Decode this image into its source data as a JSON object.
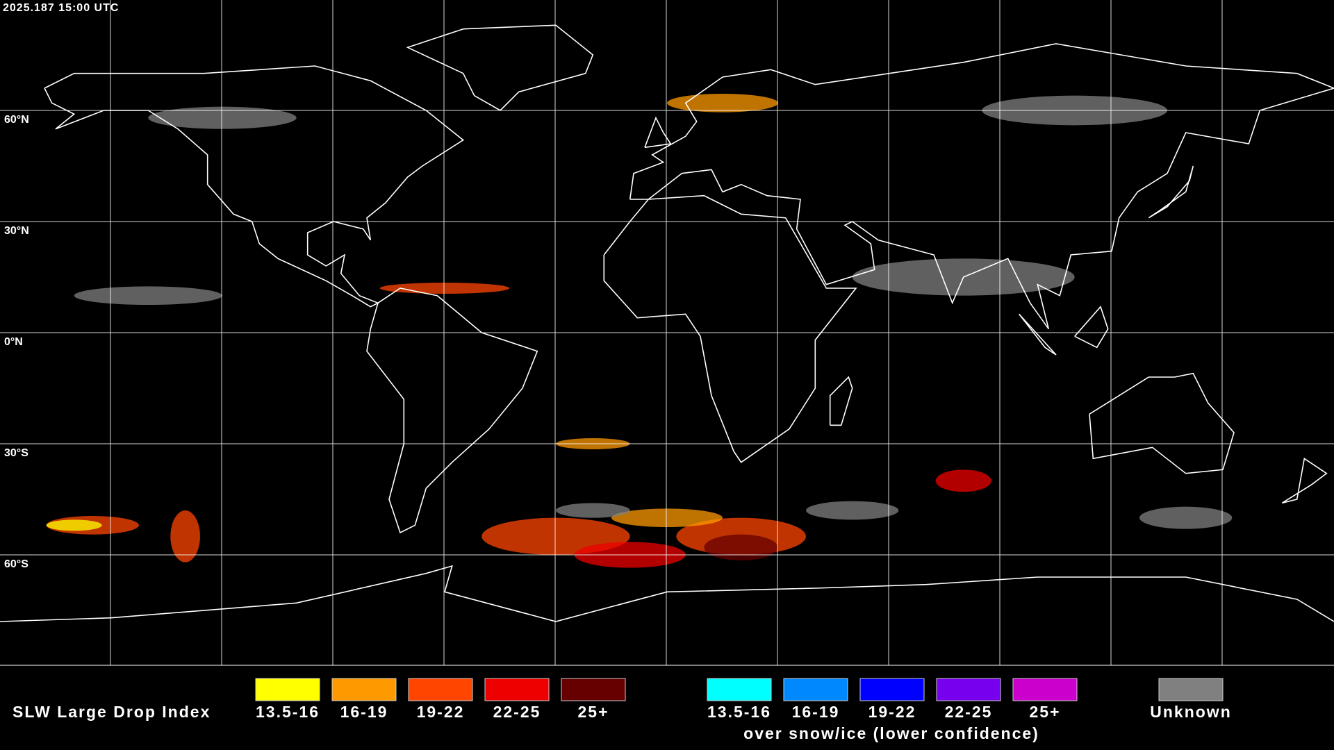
{
  "header": {
    "timestamp": "2025.187 15:00 UTC"
  },
  "map": {
    "lat_labels": [
      "60°N",
      "30°N",
      "0°N",
      "30°S",
      "60°S"
    ]
  },
  "legend": {
    "title": "SLW Large Drop Index",
    "items": [
      {
        "label": "13.5-16",
        "color": "#ffff00"
      },
      {
        "label": "16-19",
        "color": "#ff9900"
      },
      {
        "label": "19-22",
        "color": "#ff4500"
      },
      {
        "label": "22-25",
        "color": "#ee0000"
      },
      {
        "label": "25+",
        "color": "#660000"
      }
    ],
    "snow_items": [
      {
        "label": "13.5-16",
        "color": "#00ffff"
      },
      {
        "label": "16-19",
        "color": "#0088ff"
      },
      {
        "label": "19-22",
        "color": "#0000ff"
      },
      {
        "label": "22-25",
        "color": "#7700ee"
      },
      {
        "label": "25+",
        "color": "#cc00cc"
      }
    ],
    "snow_caption": "over snow/ice (lower confidence)",
    "unknown": {
      "label": "Unknown",
      "color": "#808080"
    }
  }
}
